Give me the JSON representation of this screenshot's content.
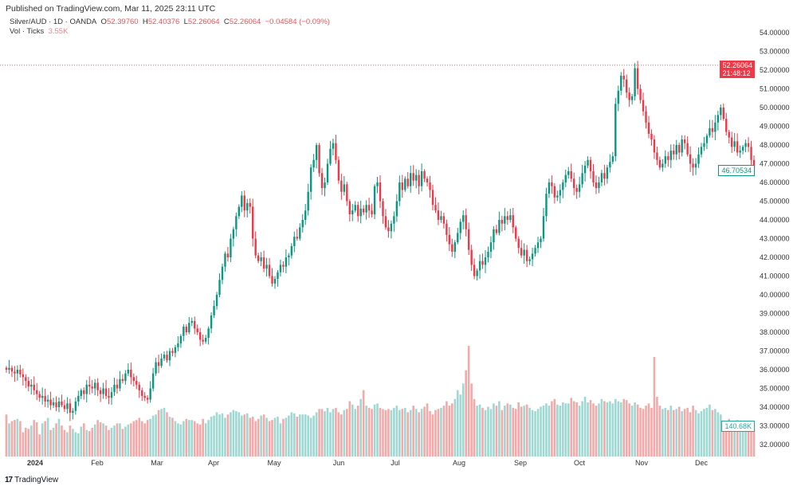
{
  "header": {
    "published": "Published on TradingView.com, Mar 11, 2025 23:11 UTC",
    "symbol": "Silver/AUD · 1D · OANDA",
    "open_label": "O",
    "open": "52.39760",
    "high_label": "H",
    "high": "52.40376",
    "low_label": "L",
    "low": "52.26064",
    "close_label": "C",
    "close": "52.26064",
    "change": "−0.04584 (−0.09%)",
    "vol_label": "Vol · Ticks",
    "vol_value": "3.55K"
  },
  "price_tags": {
    "last_price": "52.26064",
    "countdown": "21:48:12",
    "visible_close": "46.70534",
    "volume": "140.68K"
  },
  "footer": {
    "logo_text": "TradingView"
  },
  "colors": {
    "up": "#089981",
    "down": "#f23645",
    "vol_up": "#9ed8d2",
    "vol_down": "#f6a8a8",
    "last_price_line": "#f23645"
  },
  "chart_data": {
    "type": "candlestick",
    "interval": "1D",
    "yaxis_side": "right",
    "ylim": [
      31.5,
      54.6
    ],
    "y_ticks": [
      "54.00000",
      "53.00000",
      "52.00000",
      "51.00000",
      "50.00000",
      "49.00000",
      "48.00000",
      "47.00000",
      "46.00000",
      "45.00000",
      "44.00000",
      "43.00000",
      "42.00000",
      "41.00000",
      "40.00000",
      "39.00000",
      "38.00000",
      "37.00000",
      "36.00000",
      "35.00000",
      "34.00000",
      "33.00000",
      "32.00000"
    ],
    "x_ticks": [
      "2024",
      "Feb",
      "Mar",
      "Apr",
      "May",
      "Jun",
      "Jul",
      "Aug",
      "Sep",
      "Oct",
      "Nov",
      "Dec"
    ],
    "grid": false,
    "last_price_line": 52.26064,
    "close": [
      36.0,
      36.1,
      35.9,
      35.8,
      36.0,
      35.75,
      35.6,
      35.4,
      35.1,
      35.2,
      34.9,
      34.7,
      34.5,
      34.6,
      34.3,
      34.4,
      34.1,
      34.25,
      34.0,
      34.3,
      34.1,
      33.9,
      34.2,
      33.7,
      33.8,
      34.3,
      34.6,
      34.9,
      34.7,
      35.2,
      35.1,
      35.0,
      35.3,
      34.9,
      34.7,
      35.0,
      34.6,
      34.5,
      34.8,
      35.2,
      35.0,
      35.5,
      35.4,
      35.8,
      36.0,
      35.6,
      35.4,
      35.2,
      34.9,
      34.6,
      34.5,
      34.4,
      35.0,
      35.8,
      36.4,
      36.2,
      36.6,
      36.8,
      36.5,
      37.0,
      36.9,
      37.2,
      37.4,
      37.8,
      38.3,
      38.0,
      38.5,
      38.6,
      38.2,
      38.0,
      37.6,
      37.5,
      37.7,
      38.2,
      38.9,
      39.4,
      40.0,
      40.8,
      41.5,
      42.2,
      42.0,
      43.0,
      43.5,
      44.2,
      44.7,
      45.3,
      44.5,
      44.9,
      44.7,
      43.0,
      42.1,
      41.8,
      42.0,
      41.4,
      41.6,
      41.0,
      40.6,
      40.85,
      41.2,
      41.6,
      41.5,
      42.0,
      42.1,
      42.6,
      43.1,
      43.0,
      43.6,
      44.0,
      44.5,
      45.5,
      46.8,
      47.2,
      48.0,
      46.5,
      45.7,
      46.0,
      47.0,
      47.8,
      48.1,
      47.2,
      46.1,
      45.5,
      45.9,
      45.0,
      44.3,
      44.5,
      44.8,
      44.2,
      44.6,
      44.4,
      44.8,
      44.5,
      44.3,
      45.8,
      46.0,
      45.0,
      44.2,
      43.6,
      43.4,
      43.8,
      44.2,
      45.0,
      46.0,
      45.6,
      46.2,
      45.8,
      46.5,
      46.1,
      46.4,
      45.8,
      46.6,
      46.2,
      46.0,
      45.6,
      44.8,
      44.5,
      44.0,
      44.2,
      43.8,
      43.2,
      42.7,
      42.3,
      42.8,
      43.3,
      43.9,
      44.25,
      43.5,
      42.4,
      41.6,
      41.0,
      41.3,
      41.8,
      41.6,
      42.0,
      42.3,
      42.8,
      43.5,
      43.3,
      44.0,
      43.8,
      44.2,
      44.0,
      44.25,
      43.6,
      43.0,
      42.5,
      42.1,
      42.4,
      41.8,
      41.9,
      42.2,
      42.5,
      42.8,
      43.0,
      44.2,
      45.4,
      46.0,
      45.8,
      45.2,
      45.3,
      45.6,
      46.0,
      46.4,
      46.6,
      46.2,
      45.7,
      45.5,
      45.9,
      46.5,
      46.9,
      47.2,
      46.6,
      46.0,
      45.7,
      46.0,
      46.5,
      46.2,
      46.8,
      47.1,
      47.4,
      50.2,
      50.9,
      51.7,
      51.5,
      50.8,
      50.4,
      50.6,
      52.1,
      51.0,
      50.4,
      49.8,
      49.2,
      48.6,
      48.3,
      47.6,
      47.2,
      46.8,
      47.0,
      47.4,
      47.2,
      47.7,
      47.5,
      48.0,
      47.6,
      48.3,
      48.1,
      47.5,
      47.0,
      46.8,
      47.0,
      47.5,
      47.9,
      48.1,
      48.5,
      48.9,
      48.7,
      49.2,
      49.6,
      50.0,
      49.4,
      48.7,
      48.4,
      47.9,
      48.2,
      47.6,
      47.7,
      47.9,
      48.1,
      47.9,
      47.2,
      46.70534
    ],
    "volume_k": [
      190,
      150,
      160,
      165,
      170,
      160,
      110,
      130,
      125,
      140,
      165,
      155,
      100,
      150,
      160,
      175,
      120,
      130,
      150,
      170,
      140,
      120,
      110,
      140,
      125,
      110,
      105,
      135,
      150,
      120,
      115,
      130,
      145,
      165,
      155,
      150,
      140,
      120,
      130,
      140,
      150,
      150,
      125,
      135,
      145,
      150,
      160,
      165,
      175,
      160,
      150,
      165,
      170,
      185,
      190,
      210,
      215,
      220,
      200,
      180,
      175,
      160,
      150,
      145,
      160,
      170,
      165,
      165,
      160,
      150,
      145,
      170,
      150,
      165,
      180,
      185,
      200,
      190,
      195,
      175,
      190,
      200,
      210,
      205,
      200,
      185,
      190,
      195,
      175,
      180,
      160,
      170,
      185,
      190,
      175,
      160,
      165,
      175,
      180,
      150,
      170,
      175,
      185,
      200,
      195,
      180,
      190,
      190,
      190,
      185,
      175,
      185,
      200,
      215,
      215,
      205,
      220,
      200,
      215,
      220,
      200,
      190,
      210,
      215,
      250,
      235,
      215,
      230,
      260,
      300,
      230,
      220,
      215,
      235,
      240,
      220,
      215,
      210,
      215,
      210,
      220,
      230,
      210,
      215,
      220,
      200,
      210,
      230,
      215,
      200,
      215,
      225,
      240,
      205,
      190,
      210,
      215,
      220,
      230,
      250,
      230,
      240,
      260,
      300,
      280,
      330,
      390,
      500,
      330,
      260,
      230,
      235,
      220,
      210,
      225,
      215,
      240,
      230,
      250,
      210,
      230,
      240,
      235,
      220,
      215,
      245,
      225,
      230,
      235,
      220,
      210,
      205,
      215,
      225,
      230,
      240,
      230,
      250,
      260,
      235,
      230,
      245,
      240,
      240,
      265,
      250,
      245,
      230,
      250,
      270,
      245,
      255,
      240,
      230,
      240,
      260,
      250,
      245,
      250,
      240,
      260,
      250,
      245,
      260,
      255,
      240,
      230,
      245,
      235,
      220,
      215,
      230,
      240,
      220,
      450,
      270,
      230,
      215,
      220,
      210,
      230,
      210,
      215,
      225,
      205,
      215,
      220,
      200,
      230,
      210,
      195,
      205,
      215,
      220,
      235,
      210,
      215,
      200,
      190,
      150,
      160,
      170,
      140,
      150,
      165,
      145,
      150,
      155,
      145,
      140,
      140.68
    ]
  }
}
